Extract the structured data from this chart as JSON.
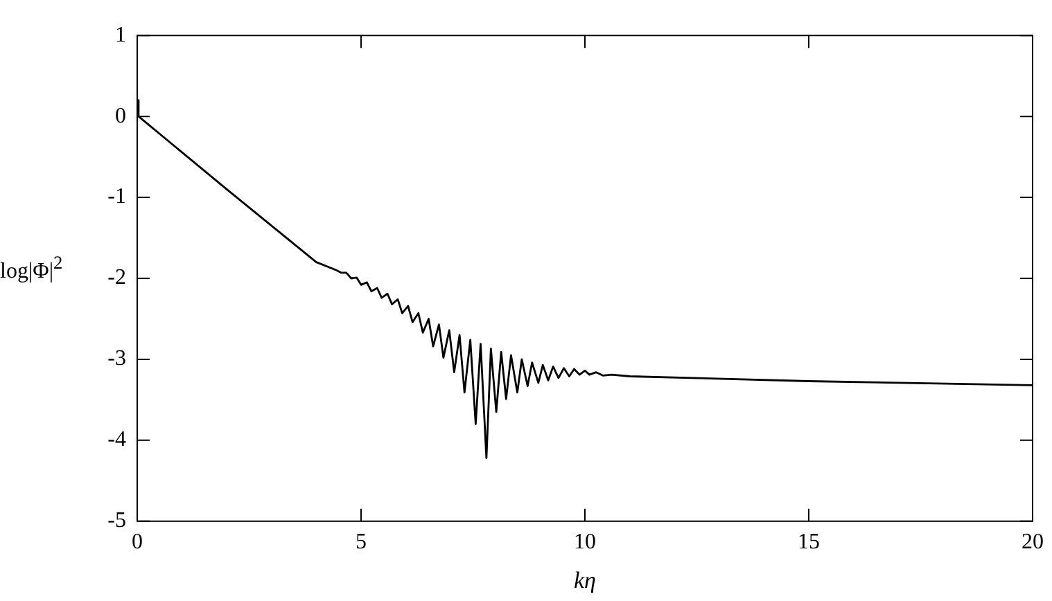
{
  "chart_data": {
    "type": "line",
    "xlabel": "kη",
    "ylabel": "log|Φ|$^{2}$",
    "series": [
      {
        "color": "#000000",
        "x": [
          0,
          0.03,
          2,
          4,
          4.45,
          4.55,
          4.67,
          4.78,
          4.9,
          5.0,
          5.13,
          5.23,
          5.36,
          5.46,
          5.59,
          5.69,
          5.82,
          5.92,
          6.05,
          6.15,
          6.28,
          6.38,
          6.51,
          6.61,
          6.74,
          6.84,
          6.97,
          7.08,
          7.2,
          7.31,
          7.44,
          7.56,
          7.67,
          7.8,
          7.9,
          8.02,
          8.13,
          8.24,
          8.35,
          8.49,
          8.59,
          8.72,
          8.82,
          8.96,
          9.06,
          9.18,
          9.29,
          9.41,
          9.53,
          9.65,
          9.76,
          9.88,
          10,
          10.1,
          10.25,
          10.4,
          10.6,
          11,
          15,
          20
        ],
        "values": [
          0.2,
          0,
          -0.9,
          -1.8,
          -1.9,
          -1.93,
          -1.93,
          -2.0,
          -1.99,
          -2.08,
          -2.05,
          -2.16,
          -2.12,
          -2.24,
          -2.19,
          -2.32,
          -2.26,
          -2.43,
          -2.34,
          -2.54,
          -2.43,
          -2.67,
          -2.5,
          -2.84,
          -2.57,
          -2.98,
          -2.64,
          -3.16,
          -2.7,
          -3.41,
          -2.76,
          -3.8,
          -2.81,
          -4.22,
          -2.87,
          -3.65,
          -2.91,
          -3.49,
          -2.95,
          -3.41,
          -3.0,
          -3.33,
          -3.04,
          -3.29,
          -3.07,
          -3.26,
          -3.09,
          -3.23,
          -3.11,
          -3.21,
          -3.12,
          -3.19,
          -3.14,
          -3.19,
          -3.16,
          -3.2,
          -3.19,
          -3.21,
          -3.27,
          -3.32
        ]
      }
    ],
    "xlim": [
      0,
      20
    ],
    "xticks": [
      0,
      5,
      10,
      15,
      20
    ],
    "ylim": [
      -5,
      1
    ],
    "yticks": [
      -5,
      -4,
      -3,
      -2,
      -1,
      0,
      1
    ],
    "grid": false,
    "legend": false,
    "marker": "none",
    "line_style": "solid"
  }
}
